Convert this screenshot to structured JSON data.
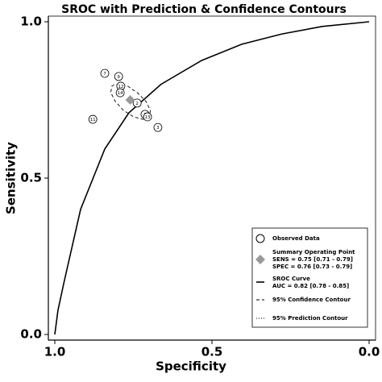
{
  "chart_data": {
    "type": "sroc",
    "title": "SROC with Prediction & Confidence Contours",
    "xlabel": "Specificity",
    "ylabel": "Sensitivity",
    "xlim": [
      1,
      0
    ],
    "ylim": [
      0,
      1
    ],
    "xticks": [
      {
        "value": 1,
        "label": "1.0"
      },
      0.5,
      {
        "value": 0,
        "label": "0.0"
      }
    ],
    "yticks": [
      {
        "value": 0,
        "label": "0.0"
      },
      0.5,
      {
        "value": 1,
        "label": "1.0"
      }
    ],
    "observed": {
      "name": "Observed Data",
      "labels": [
        "7",
        "9",
        "12",
        "14",
        "2",
        "1",
        "13",
        "3",
        "11"
      ],
      "x": [
        0.841,
        0.797,
        0.79,
        0.792,
        0.738,
        0.713,
        0.705,
        0.672,
        0.879
      ],
      "y": [
        0.835,
        0.825,
        0.794,
        0.773,
        0.74,
        0.704,
        0.696,
        0.662,
        0.688
      ]
    },
    "summary": {
      "name": "Summary Operating Point",
      "color": "#999999",
      "x": 0.76,
      "y": 0.75,
      "sens_label": "SENS = 0.75 [0.71 - 0.79]",
      "spec_label": "SPEC = 0.76 [0.73 - 0.79]"
    },
    "curve": {
      "name": "SROC Curve",
      "label": "AUC = 0.82 [0.78 - 0.85]",
      "x": [
        1,
        0.99,
        0.97,
        0.918,
        0.841,
        0.764,
        0.662,
        0.533,
        0.405,
        0.277,
        0.149,
        0
      ],
      "y": [
        0,
        0.077,
        0.17,
        0.4,
        0.593,
        0.709,
        0.8,
        0.876,
        0.928,
        0.961,
        0.985,
        1
      ]
    },
    "confidence": {
      "name": "95% Confidence Contour",
      "x": [
        0.7,
        0.719,
        0.749,
        0.782,
        0.808,
        0.822,
        0.818,
        0.798,
        0.768,
        0.736,
        0.709,
        0.696
      ],
      "y": [
        0.695,
        0.688,
        0.696,
        0.717,
        0.746,
        0.774,
        0.795,
        0.802,
        0.794,
        0.772,
        0.744,
        0.716
      ]
    },
    "prediction": {
      "name": "95% Prediction Contour"
    }
  }
}
